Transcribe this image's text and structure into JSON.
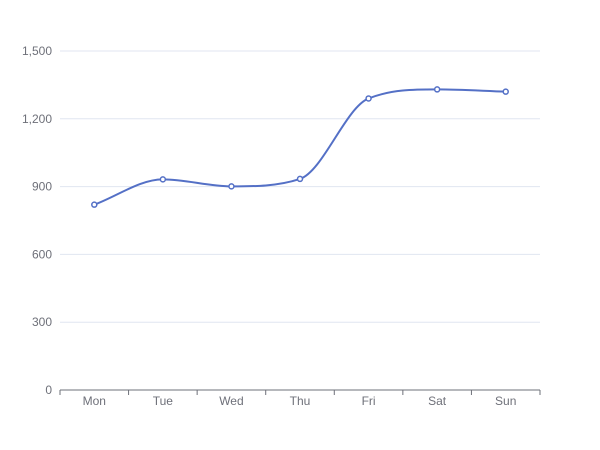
{
  "chart_data": {
    "type": "line",
    "title": "",
    "xlabel": "",
    "ylabel": "",
    "categories": [
      "Mon",
      "Tue",
      "Wed",
      "Thu",
      "Fri",
      "Sat",
      "Sun"
    ],
    "series": [
      {
        "values": [
          820,
          932,
          901,
          934,
          1290,
          1330,
          1320
        ],
        "color": "#5470c6",
        "smooth": true
      }
    ],
    "ylim": [
      0,
      1500
    ],
    "yticks": [
      0,
      300,
      600,
      900,
      1200,
      1500
    ],
    "ytick_labels": [
      "0",
      "300",
      "600",
      "900",
      "1,200",
      "1,500"
    ],
    "grid": true,
    "legend": "none"
  }
}
